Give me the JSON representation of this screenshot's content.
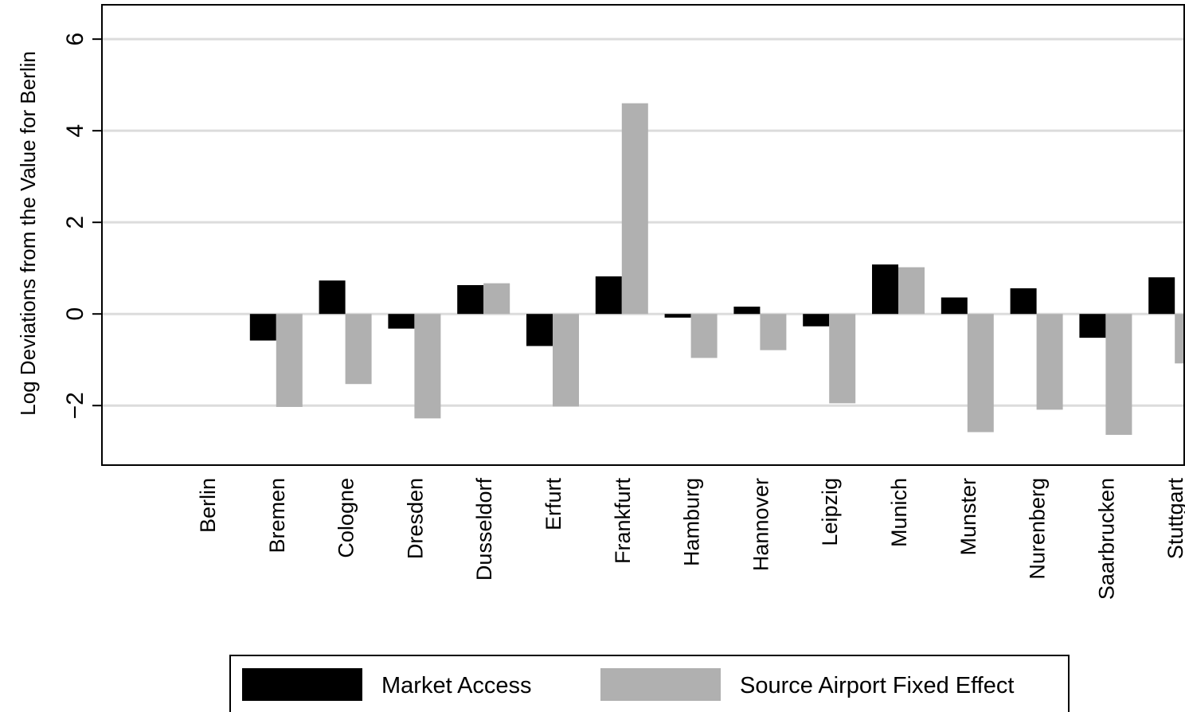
{
  "chart_data": {
    "type": "bar",
    "ylabel": "Log Deviations from the Value for Berlin",
    "xlabel": "",
    "ylim": [
      -3.3,
      6.75
    ],
    "yticks": [
      -2,
      0,
      2,
      4,
      6
    ],
    "ytick_labels": [
      "−2",
      "0",
      "2",
      "4",
      "6"
    ],
    "grid": true,
    "legend_position": "bottom",
    "categories": [
      "Berlin",
      "Bremen",
      "Cologne",
      "Dresden",
      "Dusseldorf",
      "Erfurt",
      "Frankfurt",
      "Hamburg",
      "Hannover",
      "Leipzig",
      "Munich",
      "Munster",
      "Nurenberg",
      "Saarbrucken",
      "Stuttgart"
    ],
    "series": [
      {
        "name": "Market Access",
        "color": "#000000",
        "values": [
          0,
          -0.58,
          0.73,
          -0.32,
          0.63,
          -0.7,
          0.82,
          -0.08,
          0.16,
          -0.27,
          1.08,
          0.36,
          0.56,
          -0.52,
          0.8
        ]
      },
      {
        "name": "Source Airport Fixed Effect",
        "color": "#b0b0b0",
        "values": [
          0,
          -2.03,
          -1.53,
          -2.28,
          0.67,
          -2.02,
          4.6,
          -0.96,
          -0.79,
          -1.95,
          1.02,
          -2.58,
          -2.09,
          -2.64,
          -1.08
        ]
      }
    ]
  }
}
